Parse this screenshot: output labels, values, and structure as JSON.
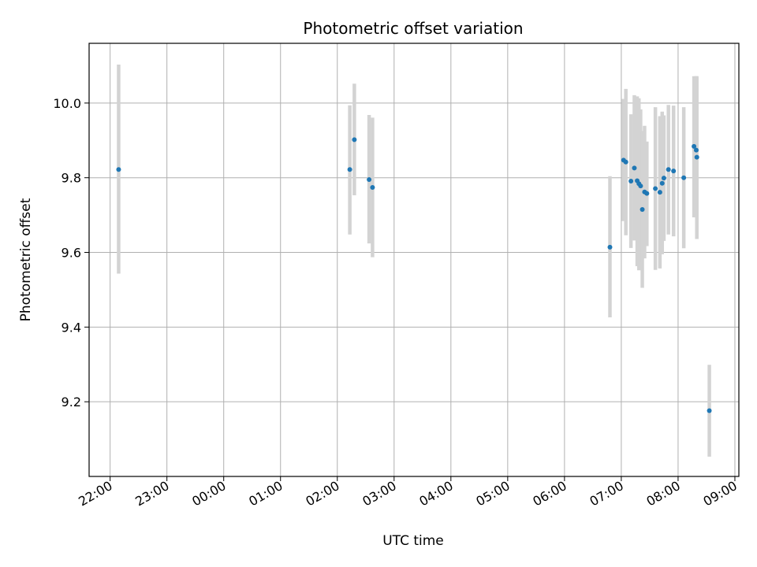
{
  "chart_data": {
    "type": "scatter",
    "title": "Photometric offset variation",
    "xlabel": "UTC time",
    "ylabel": "Photometric offset",
    "x_unit": "hours",
    "xlim": [
      21.63,
      33.07
    ],
    "ylim": [
      9.0,
      10.16
    ],
    "grid": true,
    "x_ticks": [
      {
        "value": 22,
        "label": "22:00"
      },
      {
        "value": 23,
        "label": "23:00"
      },
      {
        "value": 24,
        "label": "00:00"
      },
      {
        "value": 25,
        "label": "01:00"
      },
      {
        "value": 26,
        "label": "02:00"
      },
      {
        "value": 27,
        "label": "03:00"
      },
      {
        "value": 28,
        "label": "04:00"
      },
      {
        "value": 29,
        "label": "05:00"
      },
      {
        "value": 30,
        "label": "06:00"
      },
      {
        "value": 31,
        "label": "07:00"
      },
      {
        "value": 32,
        "label": "08:00"
      },
      {
        "value": 33,
        "label": "09:00"
      }
    ],
    "y_ticks": [
      {
        "value": 9.2,
        "label": "9.2"
      },
      {
        "value": 9.4,
        "label": "9.4"
      },
      {
        "value": 9.6,
        "label": "9.6"
      },
      {
        "value": 9.8,
        "label": "9.8"
      },
      {
        "value": 10.0,
        "label": "10.0"
      }
    ],
    "colors": {
      "point": "#1f77b4",
      "errorbar": "#d3d3d3",
      "grid": "#b0b0b0"
    },
    "points": [
      {
        "x": 22.15,
        "y": 9.822,
        "low": 9.543,
        "high": 10.103
      },
      {
        "x": 26.22,
        "y": 9.822,
        "low": 9.648,
        "high": 9.994
      },
      {
        "x": 26.3,
        "y": 9.902,
        "low": 9.753,
        "high": 10.052
      },
      {
        "x": 26.56,
        "y": 9.795,
        "low": 9.624,
        "high": 9.968
      },
      {
        "x": 26.62,
        "y": 9.774,
        "low": 9.587,
        "high": 9.961
      },
      {
        "x": 30.8,
        "y": 9.614,
        "low": 9.426,
        "high": 9.804
      },
      {
        "x": 31.04,
        "y": 9.847,
        "low": 9.684,
        "high": 10.011
      },
      {
        "x": 31.08,
        "y": 9.842,
        "low": 9.646,
        "high": 10.038
      },
      {
        "x": 31.17,
        "y": 9.791,
        "low": 9.612,
        "high": 9.97
      },
      {
        "x": 31.23,
        "y": 9.826,
        "low": 9.632,
        "high": 10.021
      },
      {
        "x": 31.28,
        "y": 9.792,
        "low": 9.563,
        "high": 10.018
      },
      {
        "x": 31.31,
        "y": 9.784,
        "low": 9.552,
        "high": 10.013
      },
      {
        "x": 31.34,
        "y": 9.778,
        "low": 9.573,
        "high": 9.983
      },
      {
        "x": 31.37,
        "y": 9.715,
        "low": 9.505,
        "high": 9.925
      },
      {
        "x": 31.41,
        "y": 9.762,
        "low": 9.584,
        "high": 9.939
      },
      {
        "x": 31.45,
        "y": 9.758,
        "low": 9.617,
        "high": 9.897
      },
      {
        "x": 31.6,
        "y": 9.771,
        "low": 9.553,
        "high": 9.989
      },
      {
        "x": 31.68,
        "y": 9.761,
        "low": 9.557,
        "high": 9.965
      },
      {
        "x": 31.72,
        "y": 9.785,
        "low": 9.595,
        "high": 9.977
      },
      {
        "x": 31.75,
        "y": 9.799,
        "low": 9.631,
        "high": 9.967
      },
      {
        "x": 31.83,
        "y": 9.822,
        "low": 9.648,
        "high": 9.995
      },
      {
        "x": 31.92,
        "y": 9.818,
        "low": 9.643,
        "high": 9.993
      },
      {
        "x": 32.1,
        "y": 9.8,
        "low": 9.611,
        "high": 9.989
      },
      {
        "x": 32.28,
        "y": 9.884,
        "low": 9.694,
        "high": 10.072
      },
      {
        "x": 32.32,
        "y": 9.874,
        "low": 9.705,
        "high": 10.072
      },
      {
        "x": 32.33,
        "y": 9.855,
        "low": 9.636,
        "high": 10.072
      },
      {
        "x": 32.55,
        "y": 9.176,
        "low": 9.053,
        "high": 9.299
      }
    ]
  }
}
